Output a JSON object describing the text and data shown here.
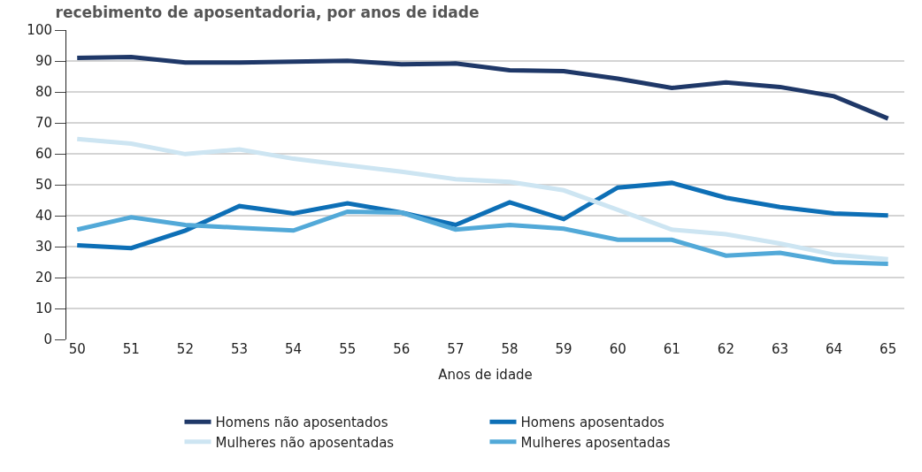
{
  "chart_data": {
    "type": "line",
    "title": "recebimento de aposentadoria, por anos de idade",
    "xlabel": "Anos de idade",
    "x": [
      50,
      51,
      52,
      53,
      54,
      55,
      56,
      57,
      58,
      59,
      60,
      61,
      62,
      63,
      64,
      65
    ],
    "series": [
      {
        "name": "Homens não aposentados",
        "color": "#1f3868",
        "values": [
          91,
          91.3,
          89.5,
          89.5,
          89.8,
          90.1,
          88.9,
          89.2,
          87,
          86.7,
          84.3,
          81.3,
          83.1,
          81.6,
          78.6,
          71.4
        ]
      },
      {
        "name": "Homens aposentados",
        "color": "#0d6fb6",
        "values": [
          30.4,
          29.5,
          35.2,
          43.1,
          40.7,
          44,
          41,
          37,
          44.3,
          38.9,
          49.1,
          50.6,
          45.8,
          42.8,
          40.7,
          40.1
        ]
      },
      {
        "name": "Mulheres não aposentadas",
        "color": "#cde5f2",
        "values": [
          64.8,
          63.3,
          59.9,
          61.4,
          58.4,
          56.3,
          54.2,
          51.8,
          50.9,
          48.2,
          41.9,
          35.5,
          34,
          31,
          27.4,
          25.9
        ]
      },
      {
        "name": "Mulheres aposentadas",
        "color": "#52a9d8",
        "values": [
          35.5,
          39.5,
          37,
          36.1,
          35.2,
          41.3,
          41,
          35.5,
          37,
          35.8,
          32.2,
          32.2,
          27.1,
          28,
          25,
          24.4
        ]
      }
    ],
    "xlim": [
      49.8,
      65.3
    ],
    "xticks": [
      50,
      51,
      52,
      53,
      54,
      55,
      56,
      57,
      58,
      59,
      60,
      61,
      62,
      63,
      64,
      65
    ],
    "ylim": [
      0,
      100
    ],
    "yticks": [
      0,
      10,
      20,
      30,
      40,
      50,
      60,
      70,
      80,
      90,
      100
    ],
    "grid": "y",
    "legend": "bottom",
    "marker": "none",
    "line_style": "solid"
  }
}
